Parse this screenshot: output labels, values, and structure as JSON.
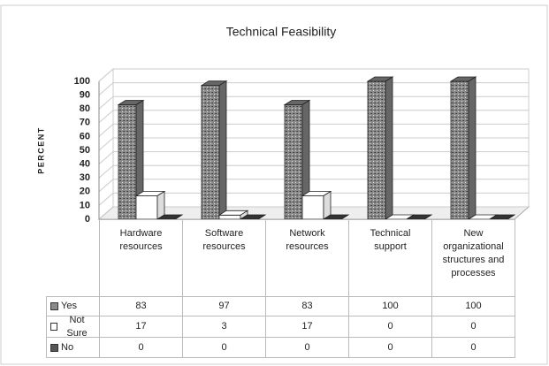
{
  "chart_data": {
    "type": "bar3d",
    "title": "Technical Feasibility",
    "y_label": "PERCENT",
    "categories": [
      "Hardware resources",
      "Software resources",
      "Network resources",
      "Technical support",
      "New organizational structures and processes"
    ],
    "series": [
      {
        "name": "Yes",
        "color": "#8a8a8a",
        "values": [
          83,
          97,
          83,
          100,
          100
        ]
      },
      {
        "name": "Not Sure",
        "color": "#ffffff",
        "values": [
          17,
          3,
          17,
          0,
          0
        ]
      },
      {
        "name": "No",
        "color": "#555555",
        "values": [
          0,
          0,
          0,
          0,
          0
        ]
      }
    ],
    "ylim": [
      0,
      100
    ],
    "yticks": [
      0,
      10,
      20,
      30,
      40,
      50,
      60,
      70,
      80,
      90,
      100
    ],
    "grid": true
  }
}
